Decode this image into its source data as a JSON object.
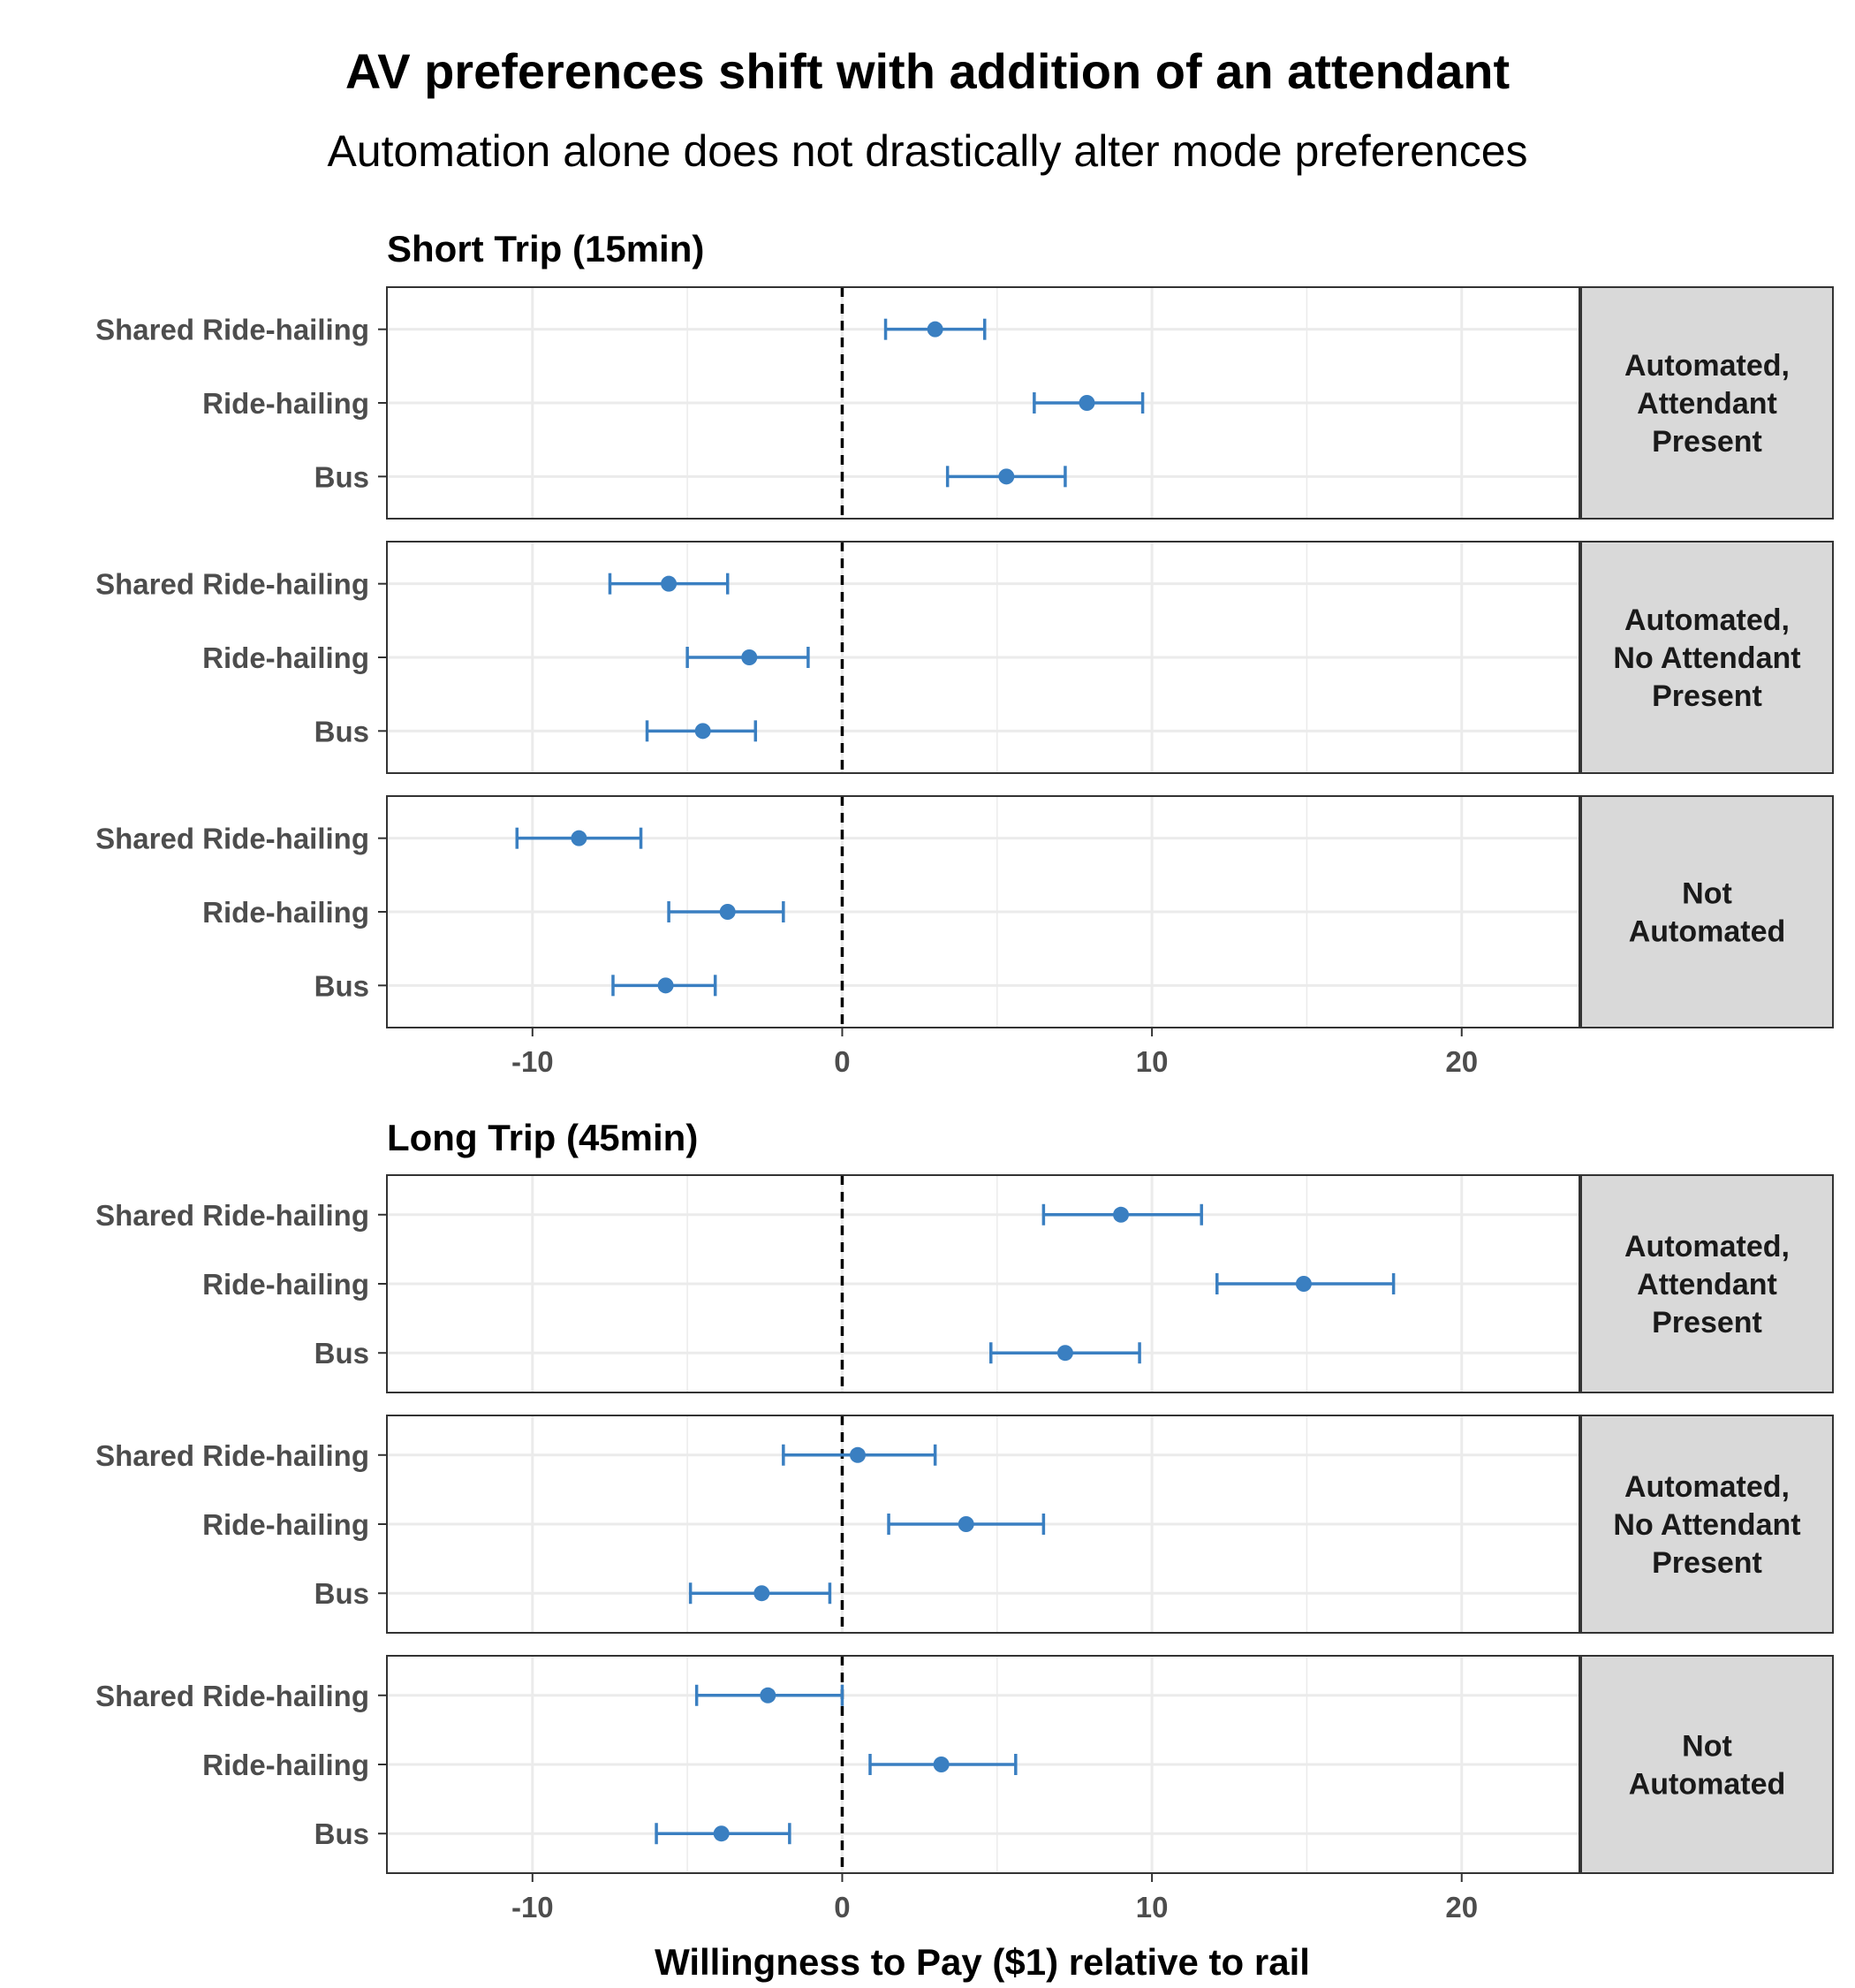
{
  "chart_data": {
    "type": "errorbar",
    "title": "AV preferences shift with addition of an attendant",
    "subtitle": "Automation alone does not drastically alter mode preferences",
    "xlabel": "Willingness to Pay ($1) relative to rail",
    "xlim": [
      -14.7,
      23.8
    ],
    "xticks": [
      -10,
      0,
      10,
      20
    ],
    "reference_line": 0,
    "categories": [
      "Shared Ride-hailing",
      "Ride-hailing",
      "Bus"
    ],
    "colors": {
      "marker": "#3a7fc1",
      "grid": "#ebebeb",
      "strip_fill": "#d9d9d9",
      "panel_border": "#333333",
      "reference": "#000000"
    },
    "groups": [
      {
        "title": "Short Trip (15min)",
        "panels": [
          {
            "label_lines": [
              "Automated,",
              "Attendant",
              "Present"
            ],
            "points": [
              {
                "category": "Shared Ride-hailing",
                "estimate": 3.0,
                "lower": 1.4,
                "upper": 4.6
              },
              {
                "category": "Ride-hailing",
                "estimate": 7.9,
                "lower": 6.2,
                "upper": 9.7
              },
              {
                "category": "Bus",
                "estimate": 5.3,
                "lower": 3.4,
                "upper": 7.2
              }
            ]
          },
          {
            "label_lines": [
              "Automated,",
              "No Attendant",
              "Present"
            ],
            "points": [
              {
                "category": "Shared Ride-hailing",
                "estimate": -5.6,
                "lower": -7.5,
                "upper": -3.7
              },
              {
                "category": "Ride-hailing",
                "estimate": -3.0,
                "lower": -5.0,
                "upper": -1.1
              },
              {
                "category": "Bus",
                "estimate": -4.5,
                "lower": -6.3,
                "upper": -2.8
              }
            ]
          },
          {
            "label_lines": [
              "Not",
              "Automated"
            ],
            "points": [
              {
                "category": "Shared Ride-hailing",
                "estimate": -8.5,
                "lower": -10.5,
                "upper": -6.5
              },
              {
                "category": "Ride-hailing",
                "estimate": -3.7,
                "lower": -5.6,
                "upper": -1.9
              },
              {
                "category": "Bus",
                "estimate": -5.7,
                "lower": -7.4,
                "upper": -4.1
              }
            ]
          }
        ]
      },
      {
        "title": "Long Trip (45min)",
        "panels": [
          {
            "label_lines": [
              "Automated,",
              "Attendant",
              "Present"
            ],
            "points": [
              {
                "category": "Shared Ride-hailing",
                "estimate": 9.0,
                "lower": 6.5,
                "upper": 11.6
              },
              {
                "category": "Ride-hailing",
                "estimate": 14.9,
                "lower": 12.1,
                "upper": 17.8
              },
              {
                "category": "Bus",
                "estimate": 7.2,
                "lower": 4.8,
                "upper": 9.6
              }
            ]
          },
          {
            "label_lines": [
              "Automated,",
              "No Attendant",
              "Present"
            ],
            "points": [
              {
                "category": "Shared Ride-hailing",
                "estimate": 0.5,
                "lower": -1.9,
                "upper": 3.0
              },
              {
                "category": "Ride-hailing",
                "estimate": 4.0,
                "lower": 1.5,
                "upper": 6.5
              },
              {
                "category": "Bus",
                "estimate": -2.6,
                "lower": -4.9,
                "upper": -0.4
              }
            ]
          },
          {
            "label_lines": [
              "Not",
              "Automated"
            ],
            "points": [
              {
                "category": "Shared Ride-hailing",
                "estimate": -2.4,
                "lower": -4.7,
                "upper": 0.0
              },
              {
                "category": "Ride-hailing",
                "estimate": 3.2,
                "lower": 0.9,
                "upper": 5.6
              },
              {
                "category": "Bus",
                "estimate": -3.9,
                "lower": -6.0,
                "upper": -1.7
              }
            ]
          }
        ]
      }
    ]
  }
}
